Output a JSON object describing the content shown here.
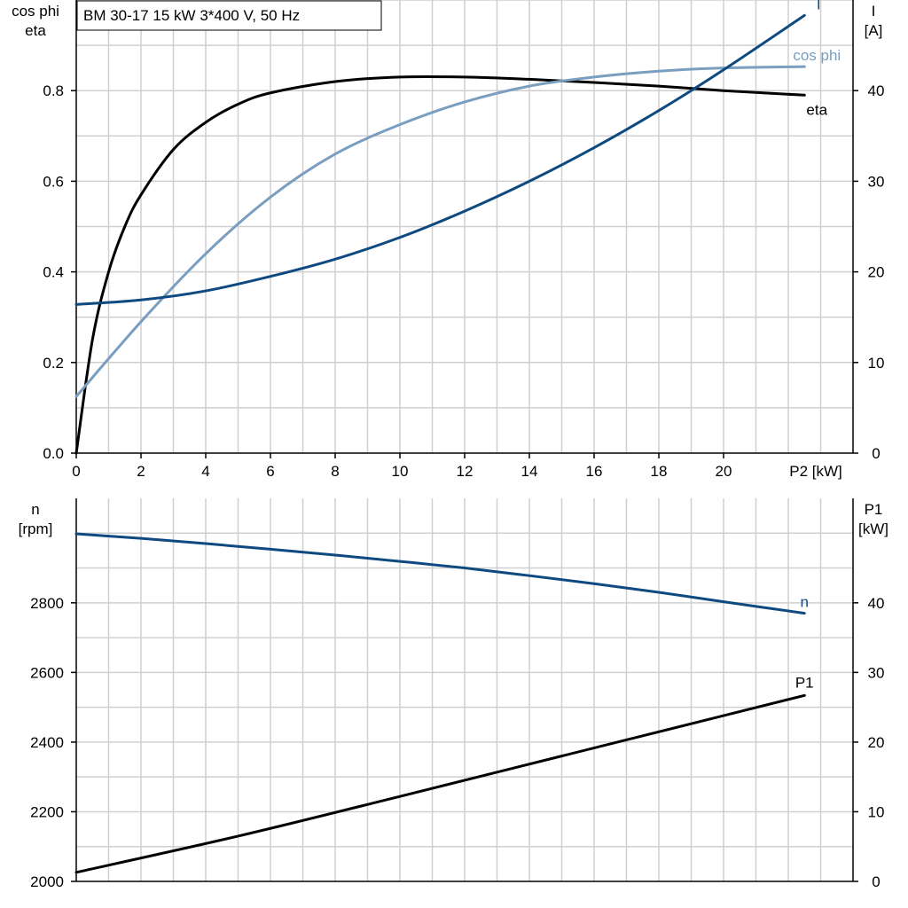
{
  "chart_data": [
    {
      "type": "line",
      "title": "BM 30-17   15 kW   3*400 V, 50 Hz",
      "xlabel": "P2 [kW]",
      "ylabel_left": [
        "cos phi",
        "eta"
      ],
      "ylabel_right": [
        "I",
        "[A]"
      ],
      "xlim": [
        0,
        24
      ],
      "ylim_left": [
        0,
        1.0
      ],
      "ylim_right": [
        0,
        50
      ],
      "x_ticks": [
        0,
        2,
        4,
        6,
        8,
        10,
        12,
        14,
        16,
        18,
        20
      ],
      "y_ticks_left": [
        0.0,
        0.2,
        0.4,
        0.6,
        0.8
      ],
      "y_ticks_right": [
        0,
        10,
        20,
        30,
        40
      ],
      "grid": true,
      "series": [
        {
          "name": "eta",
          "axis": "left",
          "color": "#000000",
          "label": "eta",
          "x": [
            0,
            0.5,
            1,
            1.5,
            2,
            3,
            4,
            5,
            6,
            8,
            10,
            12,
            14,
            16,
            18,
            20,
            22.5
          ],
          "y": [
            0,
            0.25,
            0.4,
            0.5,
            0.57,
            0.67,
            0.73,
            0.77,
            0.795,
            0.82,
            0.83,
            0.83,
            0.825,
            0.818,
            0.81,
            0.8,
            0.79
          ]
        },
        {
          "name": "cos phi",
          "axis": "left",
          "color": "#7a9ebf",
          "label": "cos phi",
          "x": [
            0,
            2,
            4,
            6,
            8,
            10,
            12,
            14,
            16,
            18,
            20,
            22.5
          ],
          "y": [
            0.125,
            0.29,
            0.44,
            0.565,
            0.66,
            0.725,
            0.775,
            0.81,
            0.83,
            0.843,
            0.85,
            0.853
          ]
        },
        {
          "name": "I",
          "axis": "right",
          "color": "#0e4a80",
          "label": "I",
          "x": [
            0,
            2,
            4,
            6,
            8,
            10,
            12,
            14,
            16,
            18,
            20,
            22.5
          ],
          "y": [
            16.4,
            16.9,
            17.9,
            19.5,
            21.4,
            23.8,
            26.7,
            30,
            33.7,
            37.8,
            42.3,
            48.3
          ]
        }
      ]
    },
    {
      "type": "line",
      "ylabel_left": [
        "n",
        "[rpm]"
      ],
      "ylabel_right": [
        "P1",
        "[kW]"
      ],
      "xlim": [
        0,
        24
      ],
      "ylim_left": [
        2000,
        3100
      ],
      "ylim_right": [
        0,
        55
      ],
      "y_ticks_left": [
        2000,
        2200,
        2400,
        2600,
        2800
      ],
      "y_ticks_right": [
        0,
        10,
        20,
        30,
        40
      ],
      "grid": true,
      "series": [
        {
          "name": "n",
          "axis": "left",
          "color": "#0e4a80",
          "label": "n",
          "x": [
            0,
            2,
            4,
            6,
            8,
            10,
            12,
            14,
            16,
            18,
            20,
            22.5
          ],
          "y": [
            2998,
            2985,
            2970,
            2954,
            2937,
            2919,
            2900,
            2878,
            2855,
            2830,
            2803,
            2770
          ]
        },
        {
          "name": "P1",
          "axis": "right",
          "color": "#000000",
          "label": "P1",
          "x": [
            0,
            5,
            10,
            15,
            20,
            22.5
          ],
          "y": [
            1.3,
            6.5,
            12.2,
            18.0,
            23.8,
            26.7
          ]
        }
      ]
    }
  ]
}
